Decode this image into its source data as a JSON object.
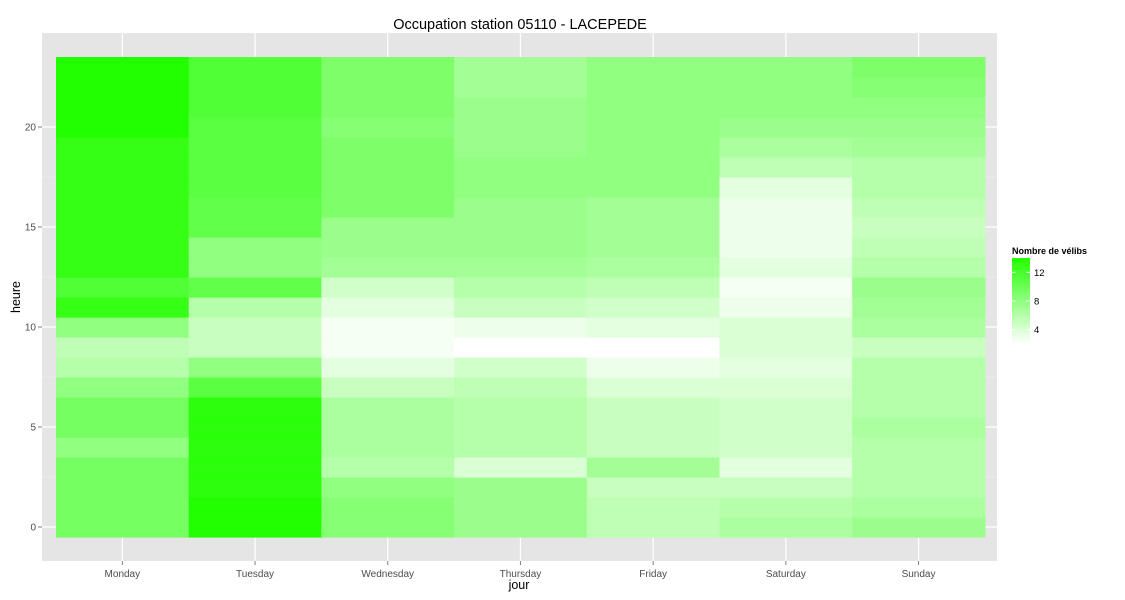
{
  "chart_data": {
    "type": "heatmap",
    "title": "Occupation station 05110 - LACEPEDE",
    "xlabel": "jour",
    "ylabel": "heure",
    "categories": [
      "Monday",
      "Tuesday",
      "Wednesday",
      "Thursday",
      "Friday",
      "Saturday",
      "Sunday"
    ],
    "hours": [
      0,
      1,
      2,
      3,
      4,
      5,
      6,
      7,
      8,
      9,
      10,
      11,
      12,
      13,
      14,
      15,
      16,
      17,
      18,
      19,
      20,
      21,
      22,
      23
    ],
    "ylim": [
      -0.5,
      23.5
    ],
    "y_ticks": [
      0,
      5,
      10,
      15,
      20
    ],
    "grid": true,
    "legend": {
      "title": "Nombre de vélibs",
      "placement": "right",
      "breaks": [
        4,
        8,
        12
      ],
      "min": 2,
      "max": 14,
      "low_color": "#ffffff",
      "high_color": "#22ff00"
    },
    "values": [
      [
        9.5,
        15.5,
        8.5,
        7.5,
        5.5,
        6.5,
        7.5
      ],
      [
        9.5,
        14.5,
        8.5,
        7.5,
        5.5,
        6.0,
        6.5
      ],
      [
        9.5,
        13.5,
        8.0,
        7.5,
        5.0,
        5.0,
        6.0
      ],
      [
        9.5,
        13.5,
        6.0,
        4.0,
        7.0,
        3.5,
        6.0
      ],
      [
        8.0,
        13.5,
        6.5,
        6.0,
        5.0,
        4.5,
        6.0
      ],
      [
        9.5,
        13.5,
        6.5,
        6.0,
        5.0,
        4.5,
        6.5
      ],
      [
        9.5,
        13.5,
        6.5,
        6.0,
        5.0,
        4.5,
        6.0
      ],
      [
        8.0,
        11.0,
        5.0,
        5.5,
        4.0,
        4.0,
        6.0
      ],
      [
        6.0,
        8.0,
        3.5,
        4.5,
        3.0,
        3.5,
        6.0
      ],
      [
        5.5,
        5.0,
        2.5,
        2.0,
        2.0,
        4.0,
        5.0
      ],
      [
        8.0,
        5.0,
        2.5,
        3.0,
        3.5,
        4.0,
        6.5
      ],
      [
        13.0,
        6.0,
        3.5,
        5.0,
        4.5,
        3.0,
        7.0
      ],
      [
        11.5,
        10.5,
        4.5,
        6.0,
        5.5,
        2.5,
        7.5
      ],
      [
        13.0,
        8.0,
        7.0,
        7.0,
        6.5,
        3.5,
        6.0
      ],
      [
        13.0,
        8.0,
        7.5,
        7.5,
        7.0,
        3.0,
        5.5
      ],
      [
        13.0,
        10.5,
        7.5,
        7.5,
        7.0,
        3.0,
        5.0
      ],
      [
        13.0,
        10.5,
        9.0,
        7.5,
        7.0,
        3.0,
        5.5
      ],
      [
        13.0,
        11.0,
        9.0,
        8.0,
        8.0,
        3.5,
        6.0
      ],
      [
        13.0,
        11.0,
        9.0,
        8.0,
        8.0,
        5.5,
        6.0
      ],
      [
        13.0,
        11.0,
        9.0,
        7.5,
        8.0,
        6.5,
        7.0
      ],
      [
        14.0,
        11.0,
        8.5,
        7.5,
        8.0,
        7.5,
        7.5
      ],
      [
        15.5,
        11.5,
        9.0,
        7.5,
        8.0,
        8.0,
        8.0
      ],
      [
        15.5,
        11.5,
        9.0,
        7.0,
        8.0,
        8.0,
        8.5
      ],
      [
        15.0,
        11.5,
        9.0,
        7.0,
        8.0,
        8.0,
        9.0
      ]
    ]
  }
}
